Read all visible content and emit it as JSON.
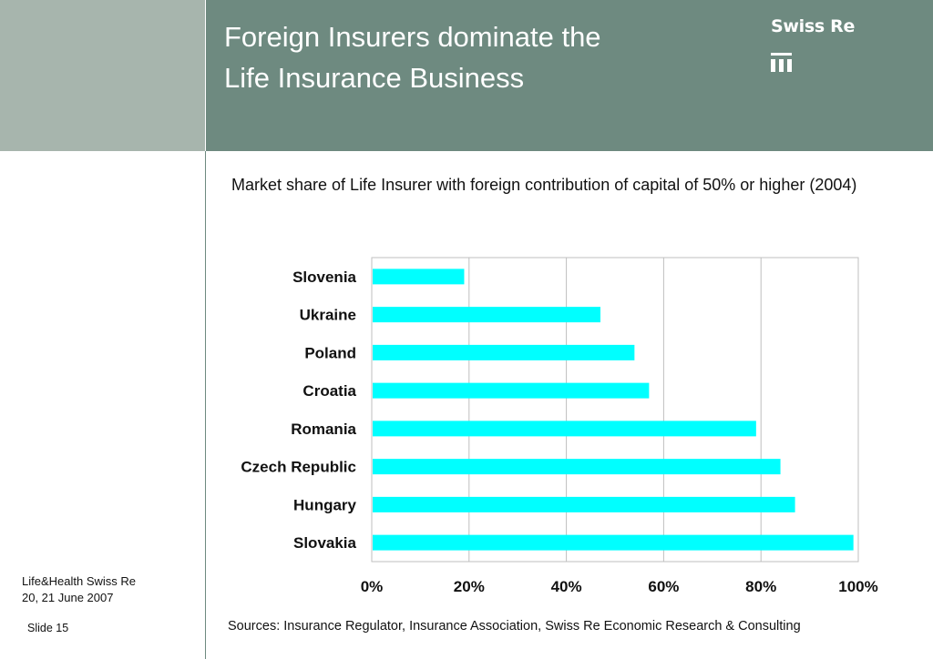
{
  "header": {
    "title_line1": "Foreign Insurers dominate the",
    "title_line2": "Life Insurance Business",
    "logo_text": "Swiss Re",
    "logo_icon": "swiss-re-logo-icon"
  },
  "chart_data": {
    "type": "bar",
    "orientation": "horizontal",
    "title": "Market share of Life Insurer with foreign contribution of capital of 50% or higher (2004)",
    "categories": [
      "Slovenia",
      "Ukraine",
      "Poland",
      "Croatia",
      "Romania",
      "Czech Republic",
      "Hungary",
      "Slovakia"
    ],
    "values": [
      19,
      47,
      54,
      57,
      79,
      84,
      87,
      99
    ],
    "xlim": [
      0,
      100
    ],
    "x_ticks": [
      "0%",
      "20%",
      "40%",
      "60%",
      "80%",
      "100%"
    ],
    "x_tick_values": [
      0,
      20,
      40,
      60,
      80,
      100
    ],
    "grid": "vertical",
    "bar_color": "#00ffff",
    "xlabel": "",
    "ylabel": ""
  },
  "sources": "Sources: Insurance Regulator, Insurance Association, Swiss Re Economic Research & Consulting",
  "footer": {
    "line1": "Life&Health Swiss Re",
    "line2": "20, 21 June 2007",
    "slide": "Slide 15"
  },
  "colors": {
    "header_bg": "#6e8a80",
    "left_block_bg": "#a7b5ad"
  }
}
